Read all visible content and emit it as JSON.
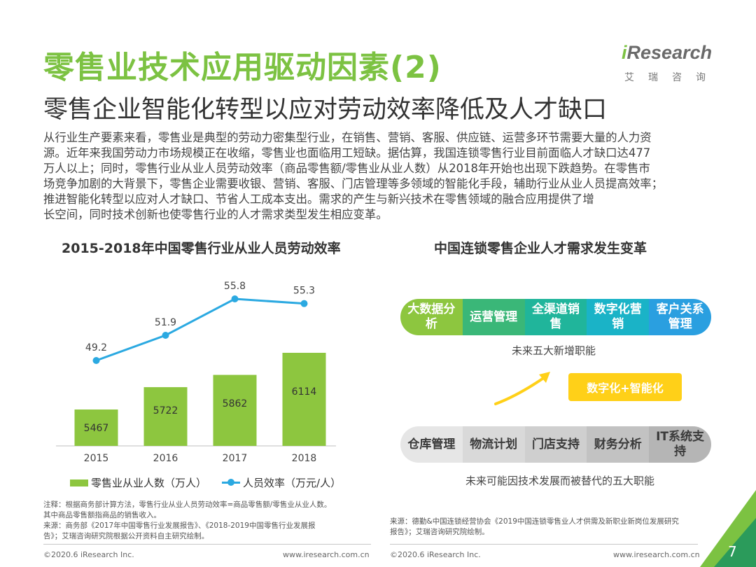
{
  "header": {
    "title": "零售业技术应用驱动因素(2)",
    "subtitle": "零售企业智能化转型以应对劳动效率降低及人才缺口"
  },
  "logo": {
    "i": "i",
    "word": "Research",
    "cn": "艾瑞咨询"
  },
  "body_lines": [
    "从行业生产要素来看，零售业是典型的劳动力密集型行业，在销售、营销、客服、供应链、运营多环节需要大量的人力资",
    "源。近年来我国劳动力市场规模正在收缩，零售业也面临用工短缺。据估算，我国连锁零售行业目前面临人才缺口达477",
    "万人以上；同时，零售行业从业人员劳动效率（商品零售额/零售业从业人数）从2018年开始也出现下跌趋势。在零售市",
    "场竞争加剧的大背景下，零售企业需要收银、营销、客服、门店管理等多领域的智能化手段，辅助行业从业人员提高效率；",
    "推进智能化转型以应对人才缺口、节省人工成本支出。需求的产生与新兴技术在零售领域的融合应用提供了增",
    "长空间，同时技术创新也使零售行业的人才需求类型发生相应变革。"
  ],
  "left_panel": {
    "title": "2015-2018年中国零售行业从业人员劳动效率",
    "legend_bar": "零售业从业人数（万人）",
    "legend_line": "人员效率（万元/人）",
    "note_lines": [
      "注释：根据商务部计算方法，零售行业从业人员劳动效率=商品零售额/零售业从业人数。",
      "其中商品零售额指商品的销售收入。",
      "来源：商务部《2017年中国零售行业发展报告》、《2018-2019中国零售行业发展报",
      "告》；艾瑞咨询研究院根据公开资料自主研究绘制。"
    ]
  },
  "chart_data": {
    "type": "bar",
    "categories": [
      "2015",
      "2016",
      "2017",
      "2018"
    ],
    "series": [
      {
        "name": "零售业从业人数（万人）",
        "kind": "bar",
        "values": [
          5467,
          5722,
          5862,
          6114
        ]
      },
      {
        "name": "人员效率（万元/人）",
        "kind": "line",
        "values": [
          49.2,
          51.9,
          55.8,
          55.3
        ]
      }
    ],
    "title": "2015-2018年中国零售行业从业人员劳动效率",
    "colors": {
      "bar": "#8dc63f",
      "line": "#2ba9e1"
    },
    "legend": "bottom"
  },
  "right_panel": {
    "title": "中国连锁零售企业人才需求发生变革",
    "new_roles": [
      {
        "label": "大数据分析",
        "color": "#8dc63f"
      },
      {
        "label": "运营管理",
        "color": "#3ab778"
      },
      {
        "label": "全渠道销售",
        "color": "#20b59b"
      },
      {
        "label": "数字化营销",
        "color": "#1ab3c7"
      },
      {
        "label": "客户关系管理",
        "color": "#2a9fe0"
      }
    ],
    "new_caption": "未来五大新增职能",
    "transform_label": "数字化+智能化",
    "old_roles": [
      "仓库管理",
      "物流计划",
      "门店支持",
      "财务分析",
      "IT系统支持"
    ],
    "old_caption": "未来可能因技术发展而被替代的五大职能",
    "source_lines": [
      "来源：德勤&中国连锁经营协会《2019中国连锁零售业人才供需及新职业新岗位发展研究",
      "报告》；艾瑞咨询研究院绘制。"
    ]
  },
  "footer": {
    "left_copyright": "©2020.6 iResearch Inc.",
    "left_url": "www.iresearch.com.cn",
    "right_copyright": "©2020.6 iResearch Inc.",
    "right_url": "www.iresearch.com.cn",
    "page": "7"
  },
  "colors": {
    "accent": "#7cc242",
    "corner_dark": "#2b9b5b"
  }
}
